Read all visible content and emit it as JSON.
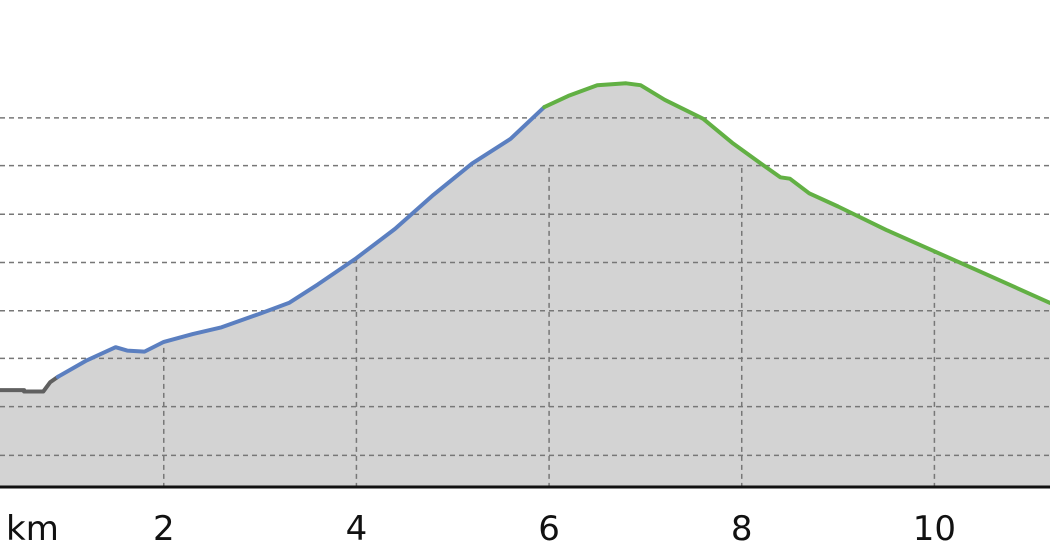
{
  "chart_data": {
    "type": "area",
    "title": "",
    "xlabel": "",
    "ylabel": "",
    "x_unit_label": "km",
    "x_ticks": [
      2,
      4,
      6,
      8,
      10
    ],
    "x_tick_labels": [
      "2",
      "4",
      "6",
      "8",
      "10"
    ],
    "xlim": [
      0.3,
      11.2
    ],
    "ylim": [
      0,
      100
    ],
    "y_gridlines": [
      6.5,
      16.5,
      26.4,
      36.2,
      46.1,
      56,
      66,
      75.8
    ],
    "grid": true,
    "fill_color": "#d3d3d3",
    "series": [
      {
        "color": "#606060",
        "x": [
          0.3,
          0.55,
          0.55,
          0.75,
          0.82,
          0.9
        ],
        "y": [
          19.9,
          19.9,
          19.6,
          19.6,
          21.5,
          22.6
        ]
      },
      {
        "color": "#5b7fc0",
        "x": [
          0.9,
          1.2,
          1.5,
          1.62,
          1.8,
          2.0,
          2.3,
          2.6,
          3.0,
          3.3,
          3.6,
          4.0,
          4.4,
          4.8,
          5.2,
          5.6,
          5.95
        ],
        "y": [
          22.6,
          26.0,
          28.7,
          28.0,
          27.8,
          29.8,
          31.4,
          32.8,
          35.6,
          37.8,
          41.6,
          47.0,
          53.0,
          60.0,
          66.4,
          71.5,
          78.0
        ]
      },
      {
        "color": "#62b044",
        "x": [
          5.95,
          6.2,
          6.5,
          6.8,
          6.95,
          7.2,
          7.6,
          7.9,
          8.2,
          8.4,
          8.5,
          8.7,
          9.0,
          9.5,
          10.0,
          10.5,
          11.2
        ],
        "y": [
          78.0,
          80.3,
          82.5,
          82.9,
          82.5,
          79.5,
          75.6,
          70.7,
          66.4,
          63.6,
          63.3,
          60.3,
          57.6,
          52.8,
          48.4,
          44.0,
          37.8
        ]
      }
    ]
  }
}
